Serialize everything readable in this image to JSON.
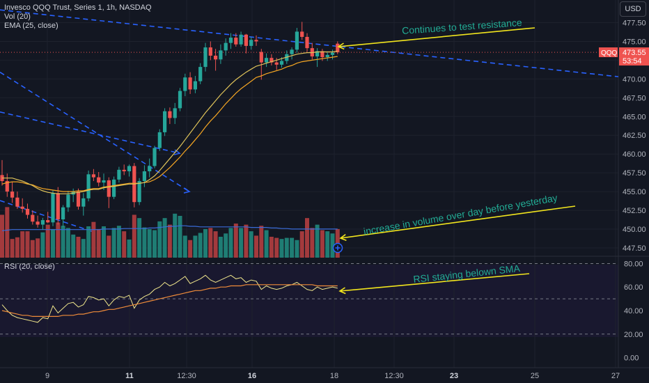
{
  "header": {
    "title": "Invesco QQQ Trust, Series 1, 1h, NASDAQ",
    "indicators": [
      "Vol (20)",
      "EMA (25, close)"
    ],
    "currency": "USD"
  },
  "price_badge": {
    "symbol": "QQQ",
    "price": "473.55",
    "countdown": "53:54"
  },
  "rsi_panel": {
    "label": "RSI (20, close)"
  },
  "annotations": {
    "resistance": "Continues to test resistance",
    "volume": "increase in volume over day before yesterday",
    "rsi": "RSI staying belown SMA"
  },
  "colors": {
    "up": "#26a69a",
    "down": "#ef5350",
    "volume_up": "#1f7d74",
    "volume_down": "#a33a3d",
    "ema": "#f5a623",
    "sma": "#e0c45a",
    "trendline": "#2962ff",
    "volume_ma": "#3a6cd9",
    "rsi_line": "#f0e68c",
    "rsi_ma": "#f08c3a",
    "annotation_arrow": "#f2e51d",
    "annotation_text": "#22ab94"
  },
  "chart_data": [
    {
      "type": "candlestick",
      "title": "Invesco QQQ Trust, Series 1, 1h, NASDAQ",
      "price_axis": {
        "ticks": [
          "477.50",
          "475.00",
          "472.50",
          "470.00",
          "467.50",
          "465.00",
          "462.50",
          "460.00",
          "457.50",
          "455.00",
          "452.50",
          "450.00",
          "447.50"
        ],
        "range": [
          446.2,
          479.4
        ]
      },
      "time_axis": {
        "ticks": [
          "9",
          "11",
          "12:30",
          "16",
          "18",
          "12:30",
          "23",
          "25",
          "27"
        ]
      },
      "last_price": 473.55,
      "candles": [
        {
          "o": 457.2,
          "h": 459.2,
          "l": 455.8,
          "c": 456.4
        },
        {
          "o": 456.4,
          "h": 457.4,
          "l": 454.3,
          "c": 455.0
        },
        {
          "o": 455.0,
          "h": 456.3,
          "l": 453.5,
          "c": 454.2
        },
        {
          "o": 454.2,
          "h": 455.0,
          "l": 452.7,
          "c": 453.0
        },
        {
          "o": 453.0,
          "h": 454.1,
          "l": 452.2,
          "c": 452.7
        },
        {
          "o": 452.7,
          "h": 453.4,
          "l": 451.4,
          "c": 451.9
        },
        {
          "o": 451.9,
          "h": 452.5,
          "l": 450.6,
          "c": 451.0
        },
        {
          "o": 451.0,
          "h": 451.8,
          "l": 450.2,
          "c": 450.6
        },
        {
          "o": 450.6,
          "h": 451.5,
          "l": 449.9,
          "c": 451.2
        },
        {
          "o": 451.2,
          "h": 452.3,
          "l": 450.8,
          "c": 450.9
        },
        {
          "o": 450.9,
          "h": 455.2,
          "l": 450.4,
          "c": 454.8
        },
        {
          "o": 454.8,
          "h": 455.6,
          "l": 450.6,
          "c": 451.3
        },
        {
          "o": 451.3,
          "h": 453.2,
          "l": 450.3,
          "c": 452.9
        },
        {
          "o": 452.9,
          "h": 455.1,
          "l": 452.3,
          "c": 454.6
        },
        {
          "o": 454.6,
          "h": 455.4,
          "l": 453.6,
          "c": 455.0
        },
        {
          "o": 455.0,
          "h": 455.4,
          "l": 452.6,
          "c": 453.0
        },
        {
          "o": 453.0,
          "h": 454.8,
          "l": 451.8,
          "c": 454.1
        },
        {
          "o": 454.1,
          "h": 457.8,
          "l": 453.7,
          "c": 457.3
        },
        {
          "o": 457.3,
          "h": 458.0,
          "l": 456.4,
          "c": 456.9
        },
        {
          "o": 456.9,
          "h": 457.6,
          "l": 455.7,
          "c": 456.2
        },
        {
          "o": 456.2,
          "h": 457.4,
          "l": 455.2,
          "c": 456.5
        },
        {
          "o": 456.5,
          "h": 456.9,
          "l": 452.8,
          "c": 454.3
        },
        {
          "o": 454.3,
          "h": 457.0,
          "l": 454.0,
          "c": 456.6
        },
        {
          "o": 456.6,
          "h": 458.3,
          "l": 456.2,
          "c": 457.9
        },
        {
          "o": 457.9,
          "h": 458.6,
          "l": 457.2,
          "c": 457.7
        },
        {
          "o": 457.7,
          "h": 458.6,
          "l": 457.0,
          "c": 458.4
        },
        {
          "o": 458.4,
          "h": 458.8,
          "l": 452.9,
          "c": 453.6
        },
        {
          "o": 453.6,
          "h": 456.8,
          "l": 453.2,
          "c": 456.4
        },
        {
          "o": 456.4,
          "h": 458.5,
          "l": 455.6,
          "c": 457.7
        },
        {
          "o": 457.7,
          "h": 459.4,
          "l": 456.9,
          "c": 458.4
        },
        {
          "o": 458.4,
          "h": 461.1,
          "l": 458.1,
          "c": 460.8
        },
        {
          "o": 460.8,
          "h": 463.3,
          "l": 460.4,
          "c": 462.9
        },
        {
          "o": 462.9,
          "h": 466.1,
          "l": 462.4,
          "c": 465.7
        },
        {
          "o": 465.7,
          "h": 466.2,
          "l": 464.0,
          "c": 464.8
        },
        {
          "o": 464.8,
          "h": 466.8,
          "l": 464.0,
          "c": 466.1
        },
        {
          "o": 466.1,
          "h": 468.8,
          "l": 465.7,
          "c": 468.4
        },
        {
          "o": 468.4,
          "h": 470.7,
          "l": 467.7,
          "c": 470.2
        },
        {
          "o": 470.2,
          "h": 470.9,
          "l": 468.0,
          "c": 468.6
        },
        {
          "o": 468.6,
          "h": 470.4,
          "l": 468.1,
          "c": 469.7
        },
        {
          "o": 469.7,
          "h": 472.1,
          "l": 469.3,
          "c": 471.6
        },
        {
          "o": 471.6,
          "h": 474.8,
          "l": 471.0,
          "c": 474.2
        },
        {
          "o": 474.2,
          "h": 475.0,
          "l": 472.5,
          "c": 473.1
        },
        {
          "o": 473.1,
          "h": 474.0,
          "l": 471.1,
          "c": 472.6
        },
        {
          "o": 472.6,
          "h": 474.6,
          "l": 472.0,
          "c": 473.8
        },
        {
          "o": 473.8,
          "h": 475.4,
          "l": 473.1,
          "c": 474.8
        },
        {
          "o": 474.8,
          "h": 476.1,
          "l": 474.0,
          "c": 475.5
        },
        {
          "o": 475.5,
          "h": 476.1,
          "l": 474.3,
          "c": 474.6
        },
        {
          "o": 474.6,
          "h": 476.3,
          "l": 474.3,
          "c": 475.9
        },
        {
          "o": 475.9,
          "h": 476.0,
          "l": 473.4,
          "c": 474.4
        },
        {
          "o": 474.4,
          "h": 475.6,
          "l": 473.9,
          "c": 475.2
        },
        {
          "o": 475.2,
          "h": 475.8,
          "l": 474.4,
          "c": 475.0
        },
        {
          "o": 473.6,
          "h": 474.0,
          "l": 469.9,
          "c": 472.2
        },
        {
          "o": 472.2,
          "h": 473.4,
          "l": 471.6,
          "c": 472.8
        },
        {
          "o": 472.8,
          "h": 473.3,
          "l": 471.8,
          "c": 472.2
        },
        {
          "o": 472.2,
          "h": 472.8,
          "l": 471.2,
          "c": 471.9
        },
        {
          "o": 471.9,
          "h": 472.9,
          "l": 471.5,
          "c": 472.4
        },
        {
          "o": 472.4,
          "h": 473.8,
          "l": 472.0,
          "c": 473.3
        },
        {
          "o": 473.3,
          "h": 474.2,
          "l": 472.6,
          "c": 473.9
        },
        {
          "o": 473.9,
          "h": 476.8,
          "l": 473.5,
          "c": 476.3
        },
        {
          "o": 476.3,
          "h": 477.6,
          "l": 475.2,
          "c": 475.6
        },
        {
          "o": 475.6,
          "h": 476.1,
          "l": 473.6,
          "c": 474.1
        },
        {
          "o": 474.1,
          "h": 474.8,
          "l": 472.6,
          "c": 473.0
        },
        {
          "o": 473.0,
          "h": 474.1,
          "l": 471.6,
          "c": 473.7
        },
        {
          "o": 473.7,
          "h": 474.0,
          "l": 472.4,
          "c": 472.9
        },
        {
          "o": 472.9,
          "h": 473.6,
          "l": 472.4,
          "c": 473.2
        },
        {
          "o": 473.2,
          "h": 473.9,
          "l": 472.6,
          "c": 473.5
        },
        {
          "o": 474.7,
          "h": 475.0,
          "l": 473.3,
          "c": 473.55
        }
      ],
      "ema25": [
        456.0,
        456.2,
        456.3,
        456.3,
        456.2,
        456.0,
        455.9,
        455.6,
        455.4,
        455.3,
        455.2,
        455.1,
        455.0,
        455.0,
        455.0,
        455.1,
        455.1,
        455.3,
        455.4,
        455.4,
        455.6,
        455.7,
        455.8,
        455.9,
        456.0,
        456.1,
        456.1,
        456.1,
        456.2,
        456.3,
        456.6,
        457.0,
        457.6,
        458.2,
        458.9,
        459.6,
        460.4,
        461.1,
        461.9,
        462.7,
        463.6,
        464.4,
        465.1,
        465.9,
        466.7,
        467.4,
        468.1,
        468.7,
        469.2,
        469.7,
        470.2,
        470.4,
        470.7,
        470.9,
        471.1,
        471.3,
        471.6,
        471.8,
        472.1,
        472.3,
        472.4,
        472.5,
        472.6,
        472.7,
        472.8,
        472.9,
        473.0
      ],
      "sma20": [
        456.8,
        456.8,
        456.8,
        456.6,
        456.4,
        456.1,
        455.8,
        455.4,
        455.1,
        454.9,
        454.8,
        454.7,
        454.7,
        454.7,
        454.8,
        454.9,
        455.0,
        455.2,
        455.3,
        455.3,
        455.5,
        455.6,
        455.7,
        455.8,
        455.9,
        456.0,
        456.0,
        456.1,
        456.2,
        456.6,
        457.1,
        457.8,
        458.6,
        459.4,
        460.2,
        461.0,
        461.9,
        462.8,
        463.7,
        464.6,
        465.5,
        466.3,
        467.1,
        467.9,
        468.6,
        469.3,
        469.9,
        470.4,
        470.9,
        471.3,
        471.7,
        471.9,
        472.1,
        472.3,
        472.5,
        472.7,
        472.9,
        473.1,
        473.3,
        473.4,
        473.5,
        473.5,
        473.6,
        473.6,
        473.6,
        473.6,
        473.7
      ],
      "volume": [
        78,
        92,
        34,
        37,
        48,
        48,
        32,
        35,
        46,
        60,
        52,
        64,
        58,
        54,
        42,
        38,
        34,
        57,
        65,
        52,
        57,
        40,
        54,
        58,
        48,
        33,
        78,
        72,
        55,
        52,
        50,
        66,
        72,
        60,
        80,
        76,
        40,
        32,
        40,
        45,
        52,
        54,
        48,
        38,
        44,
        54,
        62,
        54,
        60,
        48,
        40,
        58,
        50,
        38,
        36,
        34,
        36,
        36,
        32,
        48,
        72,
        54,
        60,
        50,
        48,
        44,
        52
      ],
      "volume_ma": [
        49,
        50,
        51,
        51,
        51,
        51,
        51,
        51,
        51,
        51,
        51,
        51,
        51,
        51,
        51,
        51,
        51,
        51,
        51,
        51,
        52,
        52,
        52,
        52,
        53,
        53,
        53,
        53,
        53,
        54,
        54,
        55,
        56,
        57,
        57,
        58,
        58,
        57,
        57,
        56,
        56,
        56,
        56,
        56,
        56,
        56,
        56,
        56,
        56,
        55,
        55,
        55,
        55,
        54,
        54,
        53,
        53,
        52,
        52,
        52,
        52,
        52,
        52,
        52,
        52,
        52,
        52
      ]
    },
    {
      "type": "line",
      "title": "RSI (20, close)",
      "yticks": [
        "80.00",
        "60.00",
        "40.00",
        "20.00",
        "0.00"
      ],
      "ylim": [
        -5,
        85
      ],
      "bands": [
        80,
        50,
        20
      ],
      "rsi": [
        45,
        40,
        36,
        34,
        33,
        32,
        31,
        30,
        34,
        33,
        44,
        38,
        42,
        46,
        47,
        43,
        45,
        52,
        51,
        49,
        50,
        44,
        49,
        52,
        51,
        53,
        42,
        49,
        52,
        54,
        58,
        60,
        64,
        61,
        63,
        66,
        69,
        63,
        65,
        67,
        70,
        66,
        64,
        66,
        68,
        70,
        67,
        68,
        64,
        66,
        65,
        58,
        61,
        59,
        58,
        59,
        61,
        62,
        64,
        61,
        58,
        57,
        60,
        58,
        59,
        60,
        59
      ],
      "rsi_ma": [
        40,
        39,
        38,
        37,
        36,
        36,
        35,
        35,
        35,
        35,
        35,
        35,
        36,
        36,
        36,
        37,
        37,
        38,
        39,
        39,
        40,
        41,
        41,
        42,
        43,
        44,
        45,
        46,
        47,
        48,
        49,
        50,
        51,
        52,
        53,
        54,
        55,
        56,
        57,
        57,
        58,
        59,
        59,
        60,
        60,
        61,
        61,
        61,
        62,
        62,
        62,
        62,
        62,
        62,
        62,
        62,
        62,
        62,
        62,
        62,
        62,
        62,
        61,
        61,
        61,
        61,
        61
      ]
    }
  ]
}
